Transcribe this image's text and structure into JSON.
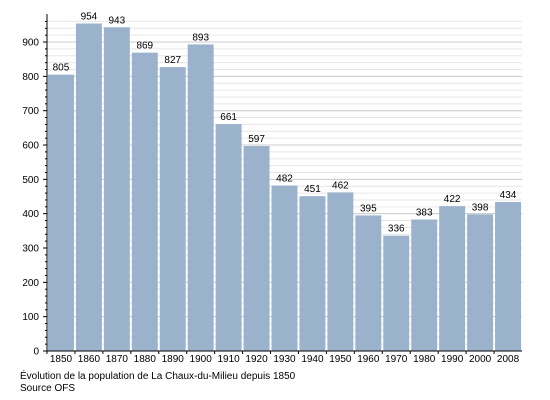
{
  "chart_data": {
    "type": "bar",
    "categories": [
      "1850",
      "1860",
      "1870",
      "1880",
      "1890",
      "1900",
      "1910",
      "1920",
      "1930",
      "1940",
      "1950",
      "1960",
      "1970",
      "1980",
      "1990",
      "2000",
      "2008"
    ],
    "values": [
      805,
      954,
      943,
      869,
      827,
      893,
      661,
      597,
      482,
      451,
      462,
      395,
      336,
      383,
      422,
      398,
      434
    ],
    "value_labels": [
      "805",
      "954",
      "943",
      "869",
      "827",
      "893",
      "661",
      "597",
      "482",
      "451",
      "462",
      "395",
      "336",
      "383",
      "422",
      "398",
      "434"
    ],
    "y_ticks": [
      0,
      100,
      200,
      300,
      400,
      500,
      600,
      700,
      800,
      900
    ],
    "ylim": [
      0,
      970
    ],
    "grid": true,
    "bar_color": "#9bb2cc",
    "grid_color": "#cccccc"
  },
  "caption": {
    "title": "Évolution de la population de La Chaux-du-Milieu depuis 1850",
    "source": "Source OFS"
  }
}
